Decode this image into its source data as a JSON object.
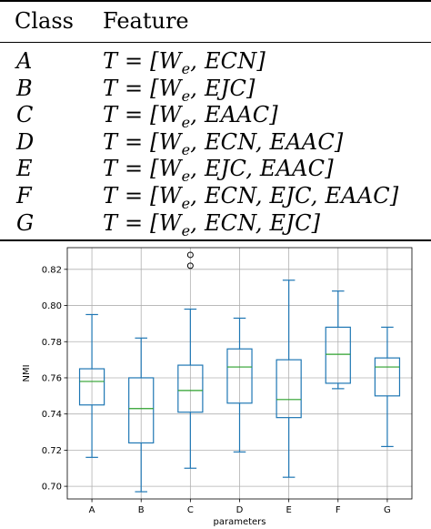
{
  "table": {
    "headers": {
      "class": "Class",
      "feature": "Feature"
    },
    "rows": [
      {
        "cls": "A",
        "feature": "T = [W_e, ECN]"
      },
      {
        "cls": "B",
        "feature": "T = [W_e, EJC]"
      },
      {
        "cls": "C",
        "feature": "T = [W_e, EAAC]"
      },
      {
        "cls": "D",
        "feature": "T = [W_e, ECN, EAAC]"
      },
      {
        "cls": "E",
        "feature": "T = [W_e, EJC, EAAC]"
      },
      {
        "cls": "F",
        "feature": "T = [W_e, ECN, EJC, EAAC]"
      },
      {
        "cls": "G",
        "feature": "T = [W_e, ECN, EJC]"
      }
    ]
  },
  "chart_data": {
    "type": "box",
    "xlabel": "parameters",
    "ylabel": "NMI",
    "ylim": [
      0.693,
      0.832
    ],
    "yticks": [
      "0.70",
      "0.72",
      "0.74",
      "0.76",
      "0.78",
      "0.80",
      "0.82"
    ],
    "categories": [
      "A",
      "B",
      "C",
      "D",
      "E",
      "F",
      "G"
    ],
    "grid": true,
    "boxes": [
      {
        "label": "A",
        "whislo": 0.716,
        "q1": 0.745,
        "med": 0.758,
        "q3": 0.765,
        "whishi": 0.795,
        "fliers": []
      },
      {
        "label": "B",
        "whislo": 0.697,
        "q1": 0.724,
        "med": 0.743,
        "q3": 0.76,
        "whishi": 0.782,
        "fliers": []
      },
      {
        "label": "C",
        "whislo": 0.71,
        "q1": 0.741,
        "med": 0.753,
        "q3": 0.767,
        "whishi": 0.798,
        "fliers": [
          0.822,
          0.828
        ]
      },
      {
        "label": "D",
        "whislo": 0.719,
        "q1": 0.746,
        "med": 0.766,
        "q3": 0.776,
        "whishi": 0.793,
        "fliers": []
      },
      {
        "label": "E",
        "whislo": 0.705,
        "q1": 0.738,
        "med": 0.748,
        "q3": 0.77,
        "whishi": 0.814,
        "fliers": []
      },
      {
        "label": "F",
        "whislo": 0.754,
        "q1": 0.757,
        "med": 0.773,
        "q3": 0.788,
        "whishi": 0.808,
        "fliers": []
      },
      {
        "label": "G",
        "whislo": 0.722,
        "q1": 0.75,
        "med": 0.766,
        "q3": 0.771,
        "whishi": 0.788,
        "fliers": []
      }
    ],
    "colors": {
      "box": "#1f77b4",
      "median": "#2ca02c",
      "grid": "#b0b0b0",
      "axis": "#000000"
    }
  }
}
